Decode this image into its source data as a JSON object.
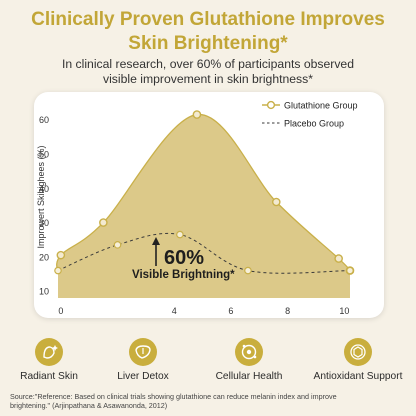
{
  "header": {
    "title_line1": "Clinically Proven Glutathione Improves",
    "title_line2": "Skin Brightening*",
    "subtitle_line1": "In clinical research, over 60% of participants observed",
    "subtitle_line2": "visible improvement in skin brightness*"
  },
  "annotation": {
    "value": "60%",
    "text": "Visible Brightning*"
  },
  "colors": {
    "accent": "#c2a637",
    "area_fill": "#dcc989",
    "marker_stroke": "#c9b04a",
    "placebo_line": "#3a3a3a"
  },
  "chart_data": {
    "type": "area",
    "title": "",
    "xlabel": "",
    "ylabel": "Improwert Skibighees (%)",
    "xlim": [
      -0.1,
      10.2
    ],
    "ylim": [
      8,
      64
    ],
    "xticks": [
      0,
      4,
      6,
      8,
      10
    ],
    "yticks": [
      10,
      20,
      30,
      40,
      50,
      60
    ],
    "grid": false,
    "legend_position": "top-right",
    "series": [
      {
        "name": "Glutathione Group",
        "style": "solid-area-with-markers",
        "x": [
          -0.1,
          0,
          1.5,
          4.8,
          7.6,
          9.8,
          10.2
        ],
        "y": [
          15,
          20.5,
          30,
          61.5,
          36,
          19.5,
          16
        ],
        "markers": [
          [
            0,
            20.5
          ],
          [
            1.5,
            30
          ],
          [
            4.8,
            61.5
          ],
          [
            7.6,
            36
          ],
          [
            9.8,
            19.5
          ],
          [
            10.2,
            16
          ]
        ]
      },
      {
        "name": "Placebo Group",
        "style": "dashed-with-markers",
        "x": [
          -0.1,
          2,
          4.2,
          6.6,
          10.2
        ],
        "y": [
          16,
          23.5,
          26.5,
          16,
          16
        ],
        "markers": [
          [
            -0.1,
            16
          ],
          [
            2,
            23.5
          ],
          [
            4.2,
            26.5
          ],
          [
            6.6,
            16
          ],
          [
            10.2,
            16
          ]
        ]
      }
    ]
  },
  "benefits": [
    {
      "label": "Radiant Skin",
      "icon": "sparkle-face-icon"
    },
    {
      "label": "Liver Detox",
      "icon": "liver-icon"
    },
    {
      "label": "Cellular Health",
      "icon": "cell-icon"
    },
    {
      "label": "Antioxidant Support",
      "icon": "shield-molecule-icon"
    }
  ],
  "footer": {
    "source_line1": "Source:\"Reference: Based on clinical trials showing glutathione can reduce melanin index and improve",
    "source_line2": "brightening.\" (Arjinpathana & Asawanonda, 2012)"
  }
}
